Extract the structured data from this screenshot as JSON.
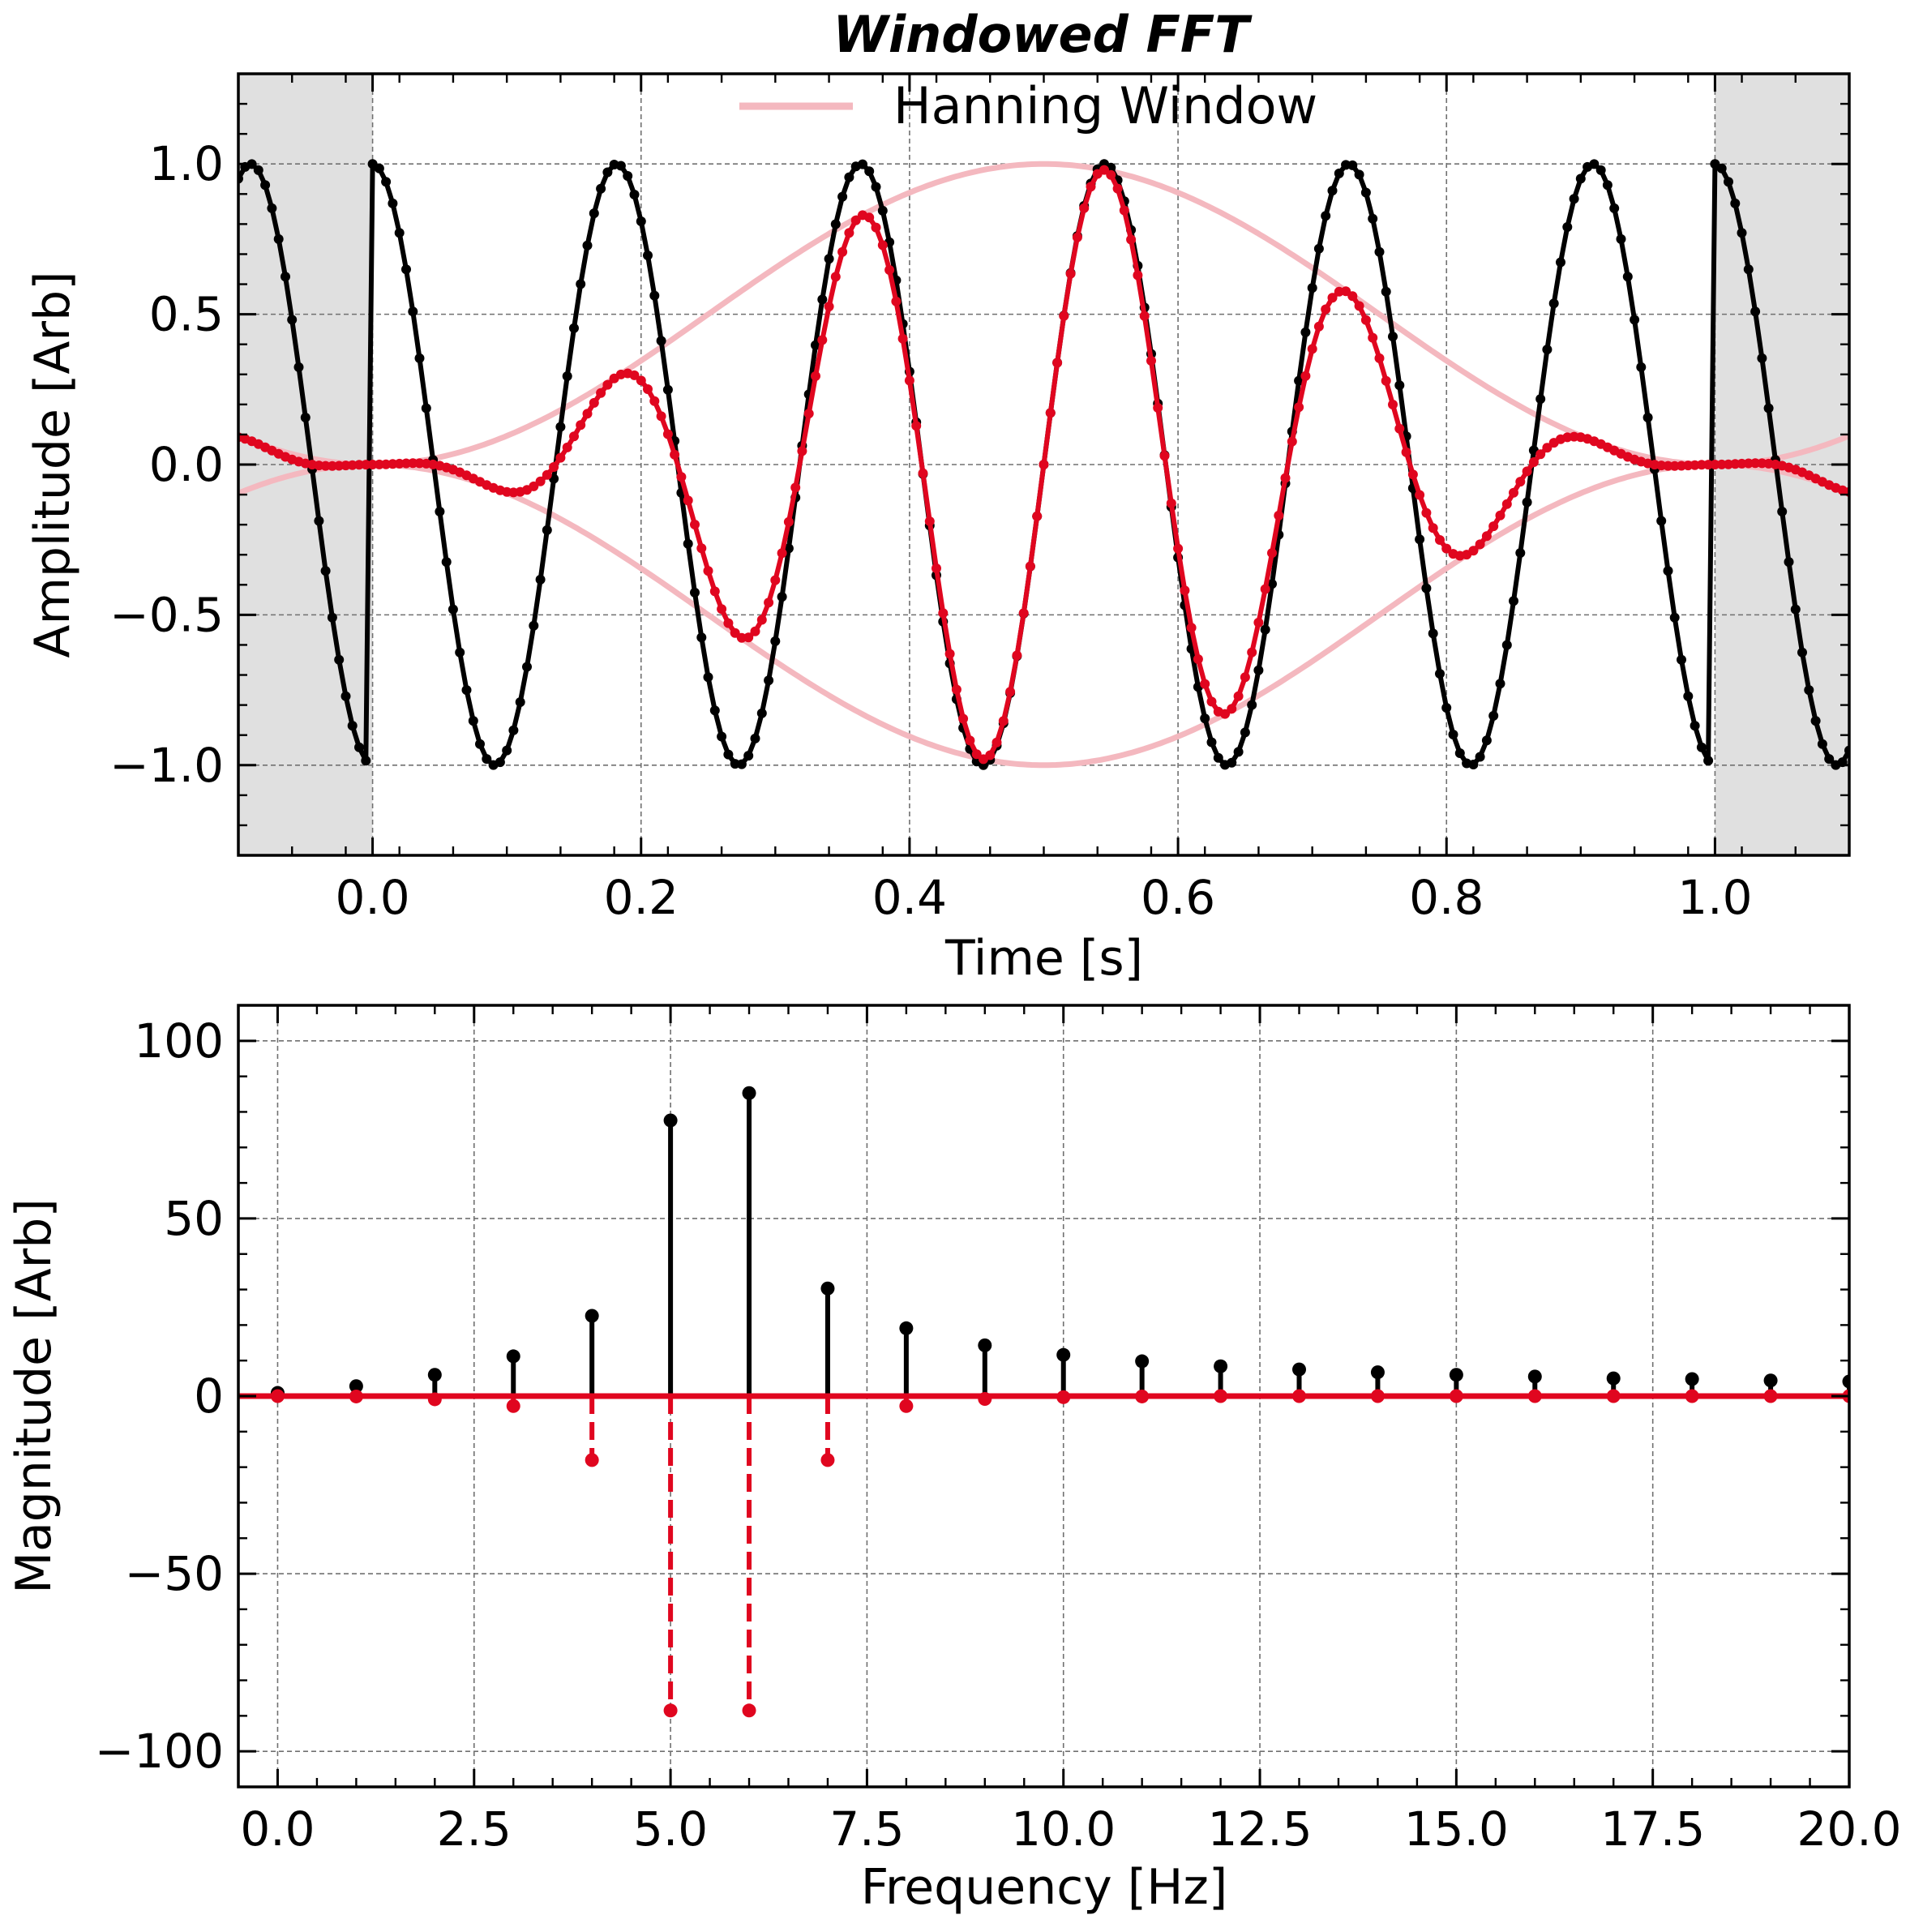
{
  "figure": {
    "title": "Windowed FFT"
  },
  "colors": {
    "signal": "#000000",
    "windowed": "#e0061f",
    "window": "#f4b8bf",
    "shade": "#e0e0e0",
    "grid": "#707070"
  },
  "chart_data": [
    {
      "type": "line",
      "panel": "top",
      "xlabel": "Time [s]",
      "ylabel": "Amplitude [Arb]",
      "xlim": [
        -0.1,
        1.1
      ],
      "ylim": [
        -1.3,
        1.3
      ],
      "xticks": [
        0.0,
        0.2,
        0.4,
        0.6,
        0.8,
        1.0
      ],
      "xtick_labels": [
        "0.0",
        "0.2",
        "0.4",
        "0.6",
        "0.8",
        "1.0"
      ],
      "yticks": [
        -1.0,
        -0.5,
        0.0,
        0.5,
        1.0
      ],
      "ytick_labels": [
        "−1.0",
        "−0.5",
        "0.0",
        "0.5",
        "1.0"
      ],
      "grid": true,
      "legend": {
        "placement": "top-center",
        "entries": [
          "Hanning Window"
        ]
      },
      "shaded_regions": [
        [
          -0.1,
          0.0
        ],
        [
          1.0,
          1.1
        ]
      ],
      "series": [
        {
          "role": "signal",
          "function": "cos(2*pi*5.5*t), periodic with period 1 s",
          "t_range": [
            -0.1,
            1.1
          ],
          "sample_step": 0.005,
          "markers": true
        },
        {
          "role": "windowed",
          "function": "signal * hanning(t), periodic with period 1 s",
          "t_range": [
            -0.1,
            1.1
          ],
          "sample_step": 0.005,
          "markers": true
        },
        {
          "name": "Hanning Window",
          "role": "window",
          "function": "± 0.5*(1 - cos(2*pi*t))",
          "t_range": [
            -0.1,
            1.1
          ],
          "markers": false
        }
      ]
    },
    {
      "type": "stem",
      "panel": "bottom",
      "xlabel": "Frequency [Hz]",
      "ylabel": "Magnitude [Arb]",
      "xlim": [
        -0.5,
        20.0
      ],
      "ylim": [
        -110,
        110
      ],
      "xticks": [
        0,
        2.5,
        5,
        7.5,
        10,
        12.5,
        15,
        17.5,
        20
      ],
      "xtick_labels": [
        "0.0",
        "2.5",
        "5.0",
        "7.5",
        "10.0",
        "12.5",
        "15.0",
        "17.5",
        "20.0"
      ],
      "yticks": [
        -100,
        -50,
        0,
        50,
        100
      ],
      "ytick_labels": [
        "−100",
        "−50",
        "0",
        "50",
        "100"
      ],
      "grid": true,
      "x": [
        0,
        1,
        2,
        3,
        4,
        5,
        6,
        7,
        8,
        9,
        10,
        11,
        12,
        13,
        14,
        15,
        16,
        17,
        18,
        19,
        20
      ],
      "series": [
        {
          "role": "raw_fft",
          "linestyle": "solid",
          "values": [
            0.9,
            2.8,
            6.0,
            11.2,
            22.6,
            77.6,
            85.3,
            30.3,
            19.1,
            14.3,
            11.6,
            9.8,
            8.4,
            7.5,
            6.7,
            6.0,
            5.5,
            5.0,
            4.8,
            4.4,
            4.1
          ]
        },
        {
          "role": "windowed_fft",
          "linestyle": "dashed",
          "values": [
            0.0,
            -0.1,
            -0.9,
            -2.8,
            -18.0,
            -88.5,
            -88.5,
            -18.0,
            -2.8,
            -0.8,
            -0.3,
            -0.1,
            0.0,
            0.0,
            0.0,
            0.0,
            0.0,
            0.0,
            0.0,
            0.0,
            0.0
          ]
        }
      ]
    }
  ]
}
